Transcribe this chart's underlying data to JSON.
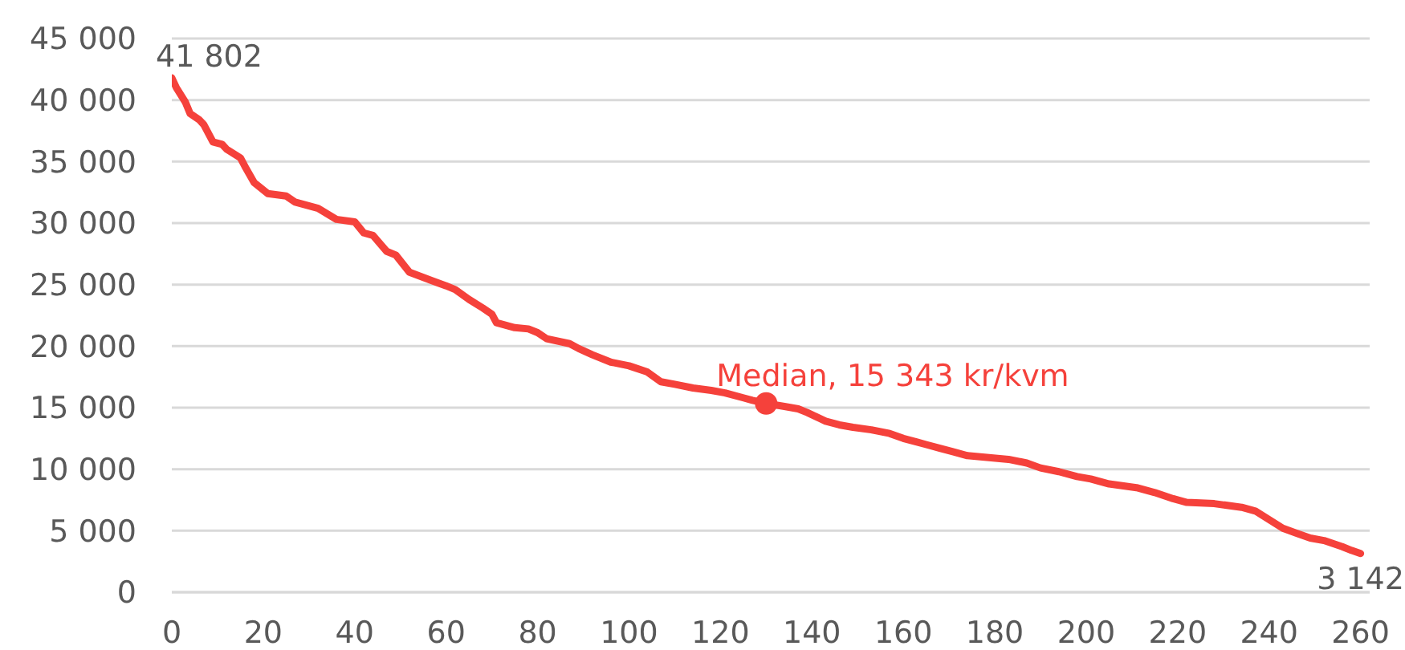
{
  "chart_data": {
    "type": "line",
    "series": [
      {
        "color": "#f5413b",
        "x": [
          0,
          1,
          3,
          4,
          6,
          7,
          9,
          11,
          12,
          15,
          16,
          18,
          21,
          25,
          27,
          32,
          36,
          40,
          42,
          44,
          47,
          49,
          52,
          57,
          60,
          62,
          65,
          68,
          70,
          71,
          75,
          78,
          80,
          82,
          87,
          89,
          92,
          96,
          100,
          104,
          107,
          110,
          114,
          118,
          121,
          125,
          127,
          130,
          134,
          137,
          139,
          143,
          146,
          149,
          153,
          157,
          160,
          163,
          165,
          168,
          171,
          174,
          183,
          187,
          190,
          194,
          198,
          201,
          205,
          211,
          215,
          219,
          222,
          228,
          234,
          237,
          240,
          243,
          246,
          249,
          252,
          256,
          258,
          260
        ],
        "values": [
          41802,
          41000,
          39800,
          38900,
          38400,
          38000,
          36600,
          36400,
          36000,
          35300,
          34600,
          33300,
          32400,
          32200,
          31700,
          31200,
          30300,
          30100,
          29200,
          29000,
          27700,
          27400,
          26000,
          25300,
          24900,
          24600,
          23800,
          23100,
          22600,
          21900,
          21500,
          21400,
          21100,
          20600,
          20200,
          19800,
          19300,
          18700,
          18400,
          17900,
          17100,
          16900,
          16600,
          16400,
          16200,
          15800,
          15600,
          15343,
          15100,
          14900,
          14600,
          13900,
          13600,
          13400,
          13200,
          12900,
          12500,
          12200,
          12000,
          11700,
          11400,
          11100,
          10800,
          10500,
          10100,
          9800,
          9400,
          9200,
          8800,
          8500,
          8100,
          7600,
          7300,
          7200,
          6900,
          6600,
          5900,
          5200,
          4800,
          4400,
          4200,
          3700,
          3400,
          3142
        ]
      },
      {
        "type": "scatter",
        "color": "#f5413b",
        "marker": "circle",
        "x": [
          130
        ],
        "values": [
          15343
        ]
      }
    ],
    "xlim": [
      0,
      262
    ],
    "xticks": [
      0,
      20,
      40,
      60,
      80,
      100,
      120,
      140,
      160,
      180,
      200,
      220,
      240,
      260
    ],
    "ylim": [
      0,
      45000
    ],
    "yticks": [
      {
        "value": 0,
        "label": "0"
      },
      {
        "value": 5000,
        "label": "5 000"
      },
      {
        "value": 10000,
        "label": "10 000"
      },
      {
        "value": 15000,
        "label": "15 000"
      },
      {
        "value": 20000,
        "label": "20 000"
      },
      {
        "value": 25000,
        "label": "25 000"
      },
      {
        "value": 30000,
        "label": "30 000"
      },
      {
        "value": 35000,
        "label": "35 000"
      },
      {
        "value": 40000,
        "label": "40 000"
      },
      {
        "value": 45000,
        "label": "45 000"
      }
    ],
    "grid": "y",
    "marker": "none",
    "line_style": "solid",
    "annotations": [
      {
        "text": "41 802",
        "x": 0,
        "y": 41802
      },
      {
        "text": "Median, 15 343 kr/kvm",
        "x": 130,
        "y": 15343
      },
      {
        "text": "3 142",
        "x": 260,
        "y": 3142
      }
    ]
  }
}
